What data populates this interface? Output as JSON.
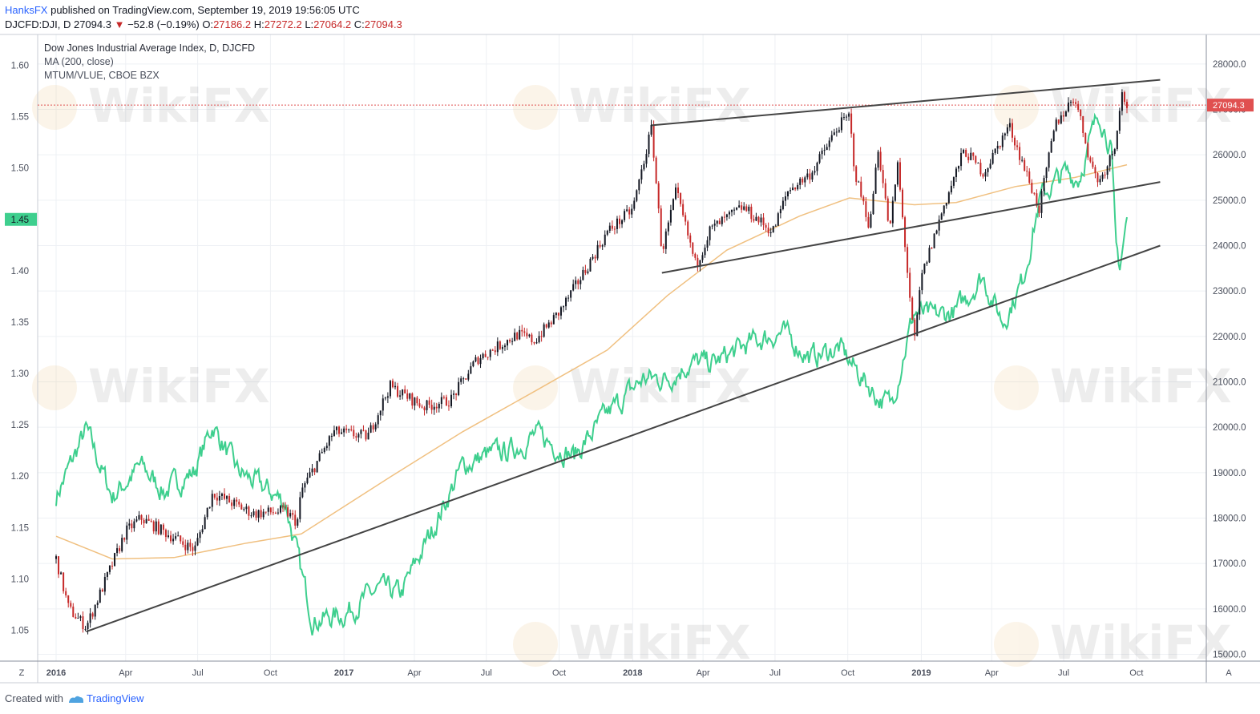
{
  "header": {
    "user": "HanksFX",
    "published": "published on TradingView.com, September 19, 2019 19:56:05 UTC"
  },
  "ohlc": {
    "symbol": "DJCFD:DJI, D",
    "last": "27094.3",
    "change": "−52.8 (−0.19%)",
    "open_label": "O:",
    "open": "27186.2",
    "high_label": "H:",
    "high": "27272.2",
    "low_label": "L:",
    "low": "27064.2",
    "close_label": "C:",
    "close": "27094.3"
  },
  "legend": {
    "title": "Dow Jones Industrial Average Index, D, DJCFD",
    "ma": "MA (200, close)",
    "ratio": "MTUM/VLUE, CBOE BZX"
  },
  "footer": {
    "created_with": "Created with",
    "brand": "TradingView"
  },
  "corner": {
    "left": "Z",
    "right": "A"
  },
  "watermark": "WikiFX",
  "colors": {
    "candle_up": "#131722",
    "candle_down": "#c62828",
    "ma": "#f0c080",
    "ratio": "#3ecf8e",
    "trendline": "#444444",
    "price_line": "#e05050",
    "price_badge": "#e05050",
    "ratio_badge": "#3ecf8e"
  },
  "chart_data": {
    "type": "line",
    "left_axis": {
      "label": "MTUM/VLUE ratio",
      "ticks": [
        "1.60",
        "1.55",
        "1.50",
        "1.45",
        "1.40",
        "1.35",
        "1.30",
        "1.25",
        "1.20",
        "1.15",
        "1.10",
        "1.05"
      ],
      "range": [
        1.02,
        1.63
      ],
      "current": "1.45"
    },
    "right_axis": {
      "ticks": [
        "28000.0",
        "27000.0",
        "26000.0",
        "25000.0",
        "24000.0",
        "23000.0",
        "22000.0",
        "21000.0",
        "20000.0",
        "19000.0",
        "18000.0",
        "17000.0",
        "16000.0",
        "15000.0"
      ],
      "range": [
        14850,
        28650
      ],
      "current": "27094.3"
    },
    "x_axis": {
      "labels": [
        "2016",
        "Apr",
        "Jul",
        "Oct",
        "2017",
        "Apr",
        "Jul",
        "Oct",
        "2018",
        "Apr",
        "Jul",
        "Oct",
        "2019",
        "Apr",
        "Jul",
        "Oct"
      ],
      "bold": [
        "2016",
        "2017",
        "2018",
        "2019"
      ]
    },
    "series": [
      {
        "name": "Dow Jones Industrial Average Index",
        "axis": "right",
        "x": [
          "2016-01-04",
          "2016-01-20",
          "2016-02-11",
          "2016-04-01",
          "2016-04-20",
          "2016-06-27",
          "2016-07-20",
          "2016-09-09",
          "2016-10-20",
          "2016-11-04",
          "2016-11-09",
          "2016-12-20",
          "2017-02-01",
          "2017-03-01",
          "2017-04-13",
          "2017-05-17",
          "2017-06-19",
          "2017-08-10",
          "2017-08-31",
          "2017-10-02",
          "2017-11-01",
          "2017-12-01",
          "2018-01-02",
          "2018-01-26",
          "2018-02-08",
          "2018-02-26",
          "2018-03-23",
          "2018-04-10",
          "2018-05-21",
          "2018-06-28",
          "2018-07-17",
          "2018-08-16",
          "2018-09-20",
          "2018-10-03",
          "2018-10-10",
          "2018-10-29",
          "2018-11-08",
          "2018-11-23",
          "2018-12-03",
          "2018-12-24",
          "2019-01-02",
          "2019-01-31",
          "2019-02-25",
          "2019-03-22",
          "2019-04-23",
          "2019-05-31",
          "2019-06-20",
          "2019-07-15",
          "2019-08-05",
          "2019-08-15",
          "2019-09-03",
          "2019-09-12",
          "2019-09-19"
        ],
        "values": [
          17100,
          16000,
          15600,
          17700,
          18000,
          17300,
          18550,
          18100,
          18150,
          17900,
          18600,
          19900,
          19800,
          20900,
          20450,
          20600,
          21500,
          22050,
          21900,
          22550,
          23400,
          24300,
          24800,
          26600,
          23850,
          25200,
          23550,
          24350,
          24850,
          24300,
          25200,
          25600,
          26650,
          26850,
          25600,
          24400,
          26200,
          24300,
          25800,
          21800,
          23300,
          24900,
          26100,
          25600,
          26650,
          24800,
          26650,
          27300,
          25750,
          25400,
          26150,
          27350,
          27094.3
        ]
      },
      {
        "name": "MA (200, close)",
        "axis": "right",
        "x": [
          "2016-01-04",
          "2016-03-15",
          "2016-06-01",
          "2016-09-01",
          "2016-11-09",
          "2017-03-01",
          "2017-06-01",
          "2017-09-01",
          "2017-12-01",
          "2018-02-15",
          "2018-05-01",
          "2018-08-01",
          "2018-10-03",
          "2018-12-24",
          "2019-02-15",
          "2019-05-01",
          "2019-07-15",
          "2019-09-19"
        ],
        "values": [
          17600,
          17100,
          17130,
          17450,
          17650,
          18900,
          19900,
          20800,
          21700,
          22900,
          23900,
          24650,
          25050,
          24900,
          24950,
          25300,
          25500,
          25780
        ]
      },
      {
        "name": "MTUM/VLUE",
        "axis": "left",
        "x": [
          "2016-01-04",
          "2016-02-11",
          "2016-03-15",
          "2016-04-20",
          "2016-05-20",
          "2016-06-27",
          "2016-07-20",
          "2016-08-20",
          "2016-10-20",
          "2016-11-09",
          "2016-11-24",
          "2016-12-31",
          "2017-02-15",
          "2017-03-15",
          "2017-04-25",
          "2017-06-01",
          "2017-07-01",
          "2017-08-01",
          "2017-09-01",
          "2017-10-20",
          "2017-12-01",
          "2018-01-15",
          "2018-02-15",
          "2018-03-15",
          "2018-04-15",
          "2018-06-01",
          "2018-07-10",
          "2018-08-15",
          "2018-09-20",
          "2018-10-20",
          "2018-11-10",
          "2018-11-25",
          "2018-12-24",
          "2019-01-15",
          "2019-02-15",
          "2019-03-20",
          "2019-04-15",
          "2019-05-10",
          "2019-06-01",
          "2019-07-01",
          "2019-07-20",
          "2019-08-15",
          "2019-08-30",
          "2019-09-05",
          "2019-09-10",
          "2019-09-19"
        ],
        "values": [
          1.18,
          1.245,
          1.18,
          1.21,
          1.185,
          1.205,
          1.25,
          1.205,
          1.175,
          1.105,
          1.06,
          1.065,
          1.09,
          1.085,
          1.15,
          1.21,
          1.22,
          1.225,
          1.24,
          1.22,
          1.26,
          1.295,
          1.295,
          1.31,
          1.31,
          1.33,
          1.34,
          1.315,
          1.325,
          1.295,
          1.275,
          1.27,
          1.36,
          1.355,
          1.36,
          1.395,
          1.35,
          1.39,
          1.47,
          1.495,
          1.49,
          1.555,
          1.52,
          1.42,
          1.405,
          1.45
        ]
      }
    ],
    "trendlines": [
      {
        "axis": "right",
        "from": [
          "2016-02-11",
          15500
        ],
        "to": [
          "2019-10-31",
          24000
        ]
      },
      {
        "axis": "right",
        "from": [
          "2018-01-26",
          26650
        ],
        "to": [
          "2019-10-31",
          27650
        ]
      },
      {
        "axis": "right",
        "from": [
          "2018-02-08",
          23400
        ],
        "to": [
          "2019-10-31",
          25400
        ]
      }
    ],
    "grid": true,
    "legend_position": "top-left"
  }
}
